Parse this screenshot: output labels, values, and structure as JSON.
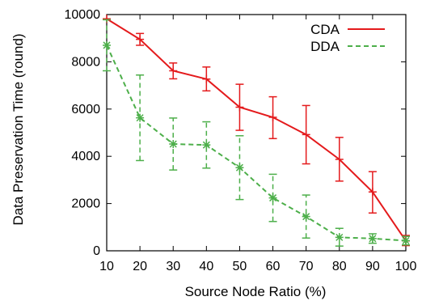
{
  "chart_data": {
    "type": "line",
    "title": "",
    "xlabel": "Source Node Ratio (%)",
    "ylabel": "Data Preservation Time (round)",
    "x": [
      10,
      20,
      30,
      40,
      50,
      60,
      70,
      80,
      90,
      100
    ],
    "xticks": [
      10,
      20,
      30,
      40,
      50,
      60,
      70,
      80,
      90,
      100
    ],
    "yticks": [
      0,
      2000,
      4000,
      6000,
      8000,
      10000
    ],
    "xlim": [
      10,
      100
    ],
    "ylim": [
      0,
      10000
    ],
    "grid": false,
    "legend": "top-right",
    "series": [
      {
        "name": "CDA",
        "color": "#e41a1c",
        "style": "solid",
        "marker": "plus",
        "values": [
          9820,
          8950,
          7620,
          7270,
          6080,
          5650,
          4920,
          3870,
          2490,
          420
        ],
        "err_low": [
          9820,
          8700,
          7280,
          6770,
          5100,
          4750,
          3680,
          2950,
          1600,
          220
        ],
        "err_high": [
          9820,
          9200,
          7950,
          7780,
          7050,
          6520,
          6150,
          4800,
          3350,
          650
        ]
      },
      {
        "name": "DDA",
        "color": "#4daf4a",
        "style": "dashed",
        "marker": "star",
        "values": [
          8700,
          5630,
          4520,
          4480,
          3520,
          2240,
          1450,
          570,
          520,
          430
        ],
        "err_low": [
          7620,
          3820,
          3420,
          3500,
          2170,
          1240,
          540,
          200,
          320,
          250
        ],
        "err_high": [
          9780,
          7440,
          5620,
          5460,
          4870,
          3240,
          2360,
          950,
          720,
          610
        ]
      }
    ]
  }
}
